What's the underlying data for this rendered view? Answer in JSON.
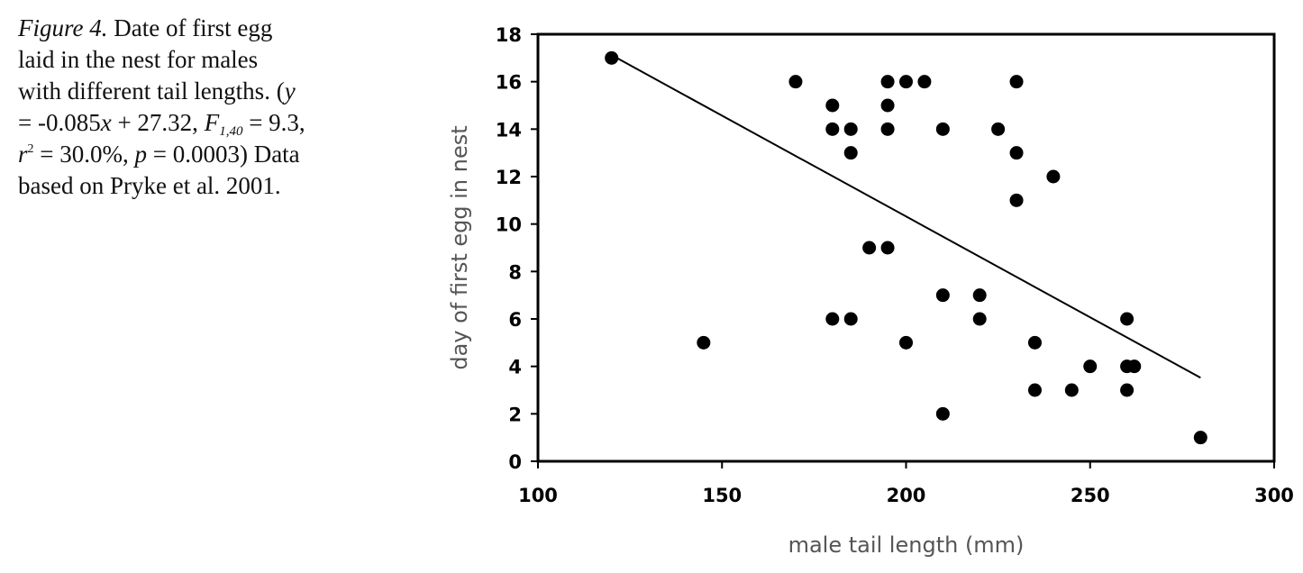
{
  "caption": {
    "lines": [
      {
        "segments": [
          {
            "text": "Figure 4.",
            "style": "italic"
          },
          {
            "text": " Date of first egg",
            "style": "normal"
          }
        ]
      },
      {
        "segments": [
          {
            "text": "laid in the nest for males",
            "style": "normal"
          }
        ]
      },
      {
        "segments": [
          {
            "text": "with different tail lengths. (",
            "style": "normal"
          },
          {
            "text": "y",
            "style": "italic"
          }
        ]
      },
      {
        "segments": [
          {
            "text": "= -0.085",
            "style": "normal"
          },
          {
            "text": "x",
            "style": "italic"
          },
          {
            "text": " + 27.32, ",
            "style": "normal"
          },
          {
            "text": "F",
            "style": "italic"
          },
          {
            "text": "1,40",
            "style": "sub"
          },
          {
            "text": " = 9.3,",
            "style": "normal"
          }
        ]
      },
      {
        "segments": [
          {
            "text": "r",
            "style": "italic"
          },
          {
            "text": "2",
            "style": "sup"
          },
          {
            "text": " = 30.0%, ",
            "style": "normal"
          },
          {
            "text": "p",
            "style": "italic"
          },
          {
            "text": " = 0.0003) Data",
            "style": "normal"
          }
        ]
      },
      {
        "segments": [
          {
            "text": "based on Pryke et al. 2001.",
            "style": "normal"
          }
        ]
      }
    ]
  },
  "chart_data": {
    "type": "scatter",
    "title": "",
    "xlabel": "male tail length (mm)",
    "ylabel": "day of first egg  in nest",
    "xlim": [
      100,
      300
    ],
    "ylim": [
      0,
      18
    ],
    "xticks": [
      100,
      150,
      200,
      250,
      300
    ],
    "yticks": [
      0,
      2,
      4,
      6,
      8,
      10,
      12,
      14,
      16,
      18
    ],
    "grid": false,
    "legend": "none",
    "marker_color": "#000000",
    "points": [
      {
        "x": 120,
        "y": 17
      },
      {
        "x": 145,
        "y": 5
      },
      {
        "x": 170,
        "y": 16
      },
      {
        "x": 180,
        "y": 15
      },
      {
        "x": 180,
        "y": 14
      },
      {
        "x": 180,
        "y": 6
      },
      {
        "x": 185,
        "y": 14
      },
      {
        "x": 185,
        "y": 13
      },
      {
        "x": 185,
        "y": 6
      },
      {
        "x": 190,
        "y": 9
      },
      {
        "x": 195,
        "y": 16
      },
      {
        "x": 195,
        "y": 15
      },
      {
        "x": 195,
        "y": 14
      },
      {
        "x": 195,
        "y": 9
      },
      {
        "x": 200,
        "y": 16
      },
      {
        "x": 200,
        "y": 5
      },
      {
        "x": 205,
        "y": 16
      },
      {
        "x": 210,
        "y": 14
      },
      {
        "x": 210,
        "y": 7
      },
      {
        "x": 210,
        "y": 2
      },
      {
        "x": 220,
        "y": 7
      },
      {
        "x": 220,
        "y": 6
      },
      {
        "x": 225,
        "y": 14
      },
      {
        "x": 230,
        "y": 16
      },
      {
        "x": 230,
        "y": 13
      },
      {
        "x": 230,
        "y": 11
      },
      {
        "x": 235,
        "y": 5
      },
      {
        "x": 235,
        "y": 3
      },
      {
        "x": 240,
        "y": 12
      },
      {
        "x": 245,
        "y": 3
      },
      {
        "x": 250,
        "y": 4
      },
      {
        "x": 260,
        "y": 6
      },
      {
        "x": 260,
        "y": 4
      },
      {
        "x": 260,
        "y": 3
      },
      {
        "x": 262,
        "y": 4
      },
      {
        "x": 280,
        "y": 1
      }
    ],
    "trendline": {
      "slope": -0.085,
      "intercept": 27.32,
      "x_range": [
        120,
        280
      ]
    }
  }
}
